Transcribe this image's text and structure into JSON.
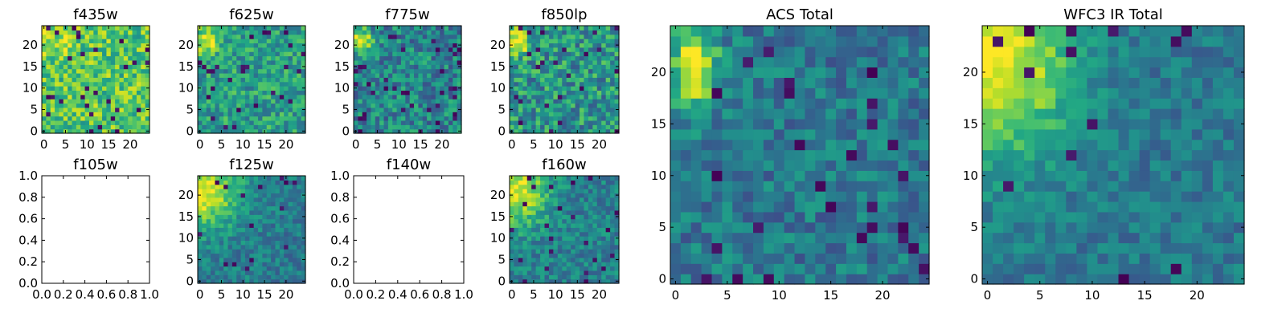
{
  "figure": {
    "background": "#ffffff",
    "colormap": "viridis"
  },
  "chart_data": [
    {
      "id": "f435w",
      "type": "heatmap",
      "title": "f435w",
      "grid_size": 25,
      "has_data": true,
      "xlim": [
        -0.5,
        24.5
      ],
      "ylim": [
        -0.5,
        24.5
      ],
      "xticks": [
        0,
        5,
        10,
        15,
        20
      ],
      "yticks": [
        0,
        5,
        10,
        15,
        20
      ],
      "xtick_labels": [
        "0",
        "5",
        "10",
        "15",
        "20"
      ],
      "ytick_labels": [
        "0",
        "5",
        "10",
        "15",
        "20"
      ],
      "pattern": {
        "base": 0.72,
        "noise": 0.22,
        "blob": {
          "x": 2,
          "y": 21,
          "sx": 3.5,
          "sy": 3.0,
          "amp": 0.15
        },
        "dark_frac": 0.04,
        "seed": 11
      }
    },
    {
      "id": "f625w",
      "type": "heatmap",
      "title": "f625w",
      "grid_size": 25,
      "has_data": true,
      "xlim": [
        -0.5,
        24.5
      ],
      "ylim": [
        -0.5,
        24.5
      ],
      "xticks": [
        0,
        5,
        10,
        15,
        20
      ],
      "yticks": [
        0,
        5,
        10,
        15,
        20
      ],
      "xtick_labels": [
        "0",
        "5",
        "10",
        "15",
        "20"
      ],
      "ytick_labels": [
        "0",
        "5",
        "10",
        "15",
        "20"
      ],
      "pattern": {
        "base": 0.56,
        "noise": 0.2,
        "blob": {
          "x": 1.5,
          "y": 21,
          "sx": 2.2,
          "sy": 2.2,
          "amp": 0.42
        },
        "dark_frac": 0.04,
        "seed": 23
      }
    },
    {
      "id": "f775w",
      "type": "heatmap",
      "title": "f775w",
      "grid_size": 25,
      "has_data": true,
      "xlim": [
        -0.5,
        24.5
      ],
      "ylim": [
        -0.5,
        24.5
      ],
      "xticks": [
        0,
        5,
        10,
        15,
        20
      ],
      "yticks": [
        0,
        5,
        10,
        15,
        20
      ],
      "xtick_labels": [
        "0",
        "5",
        "10",
        "15",
        "20"
      ],
      "ytick_labels": [
        "0",
        "5",
        "10",
        "15",
        "20"
      ],
      "pattern": {
        "base": 0.45,
        "noise": 0.22,
        "blob": {
          "x": 1.5,
          "y": 21,
          "sx": 1.8,
          "sy": 2.0,
          "amp": 0.55
        },
        "dark_frac": 0.06,
        "seed": 37
      }
    },
    {
      "id": "f850lp",
      "type": "heatmap",
      "title": "f850lp",
      "grid_size": 25,
      "has_data": true,
      "xlim": [
        -0.5,
        24.5
      ],
      "ylim": [
        -0.5,
        24.5
      ],
      "xticks": [
        0,
        5,
        10,
        15,
        20
      ],
      "yticks": [
        0,
        5,
        10,
        15,
        20
      ],
      "xtick_labels": [
        "0",
        "5",
        "10",
        "15",
        "20"
      ],
      "ytick_labels": [
        "0",
        "5",
        "10",
        "15",
        "20"
      ],
      "pattern": {
        "base": 0.52,
        "noise": 0.24,
        "blob": {
          "x": 1.5,
          "y": 21,
          "sx": 2.0,
          "sy": 2.2,
          "amp": 0.45
        },
        "dark_frac": 0.06,
        "seed": 41
      }
    },
    {
      "id": "f105w",
      "type": "heatmap",
      "title": "f105w",
      "has_data": false,
      "xlim": [
        0,
        1
      ],
      "ylim": [
        0,
        1
      ],
      "xticks": [
        0,
        0.2,
        0.4,
        0.6,
        0.8,
        1.0
      ],
      "yticks": [
        0,
        0.2,
        0.4,
        0.6,
        0.8,
        1.0
      ],
      "xtick_labels": [
        "0.0",
        "0.2",
        "0.4",
        "0.6",
        "0.8",
        "1.0"
      ],
      "ytick_labels": [
        "0.0",
        "0.2",
        "0.4",
        "0.6",
        "0.8",
        "1.0"
      ]
    },
    {
      "id": "f125w",
      "type": "heatmap",
      "title": "f125w",
      "grid_size": 25,
      "has_data": true,
      "xlim": [
        -0.5,
        24.5
      ],
      "ylim": [
        -0.5,
        24.5
      ],
      "xticks": [
        0,
        5,
        10,
        15,
        20
      ],
      "yticks": [
        0,
        5,
        10,
        15,
        20
      ],
      "xtick_labels": [
        "0",
        "5",
        "10",
        "15",
        "20"
      ],
      "ytick_labels": [
        "0",
        "5",
        "10",
        "15",
        "20"
      ],
      "pattern": {
        "base": 0.42,
        "noise": 0.14,
        "blob": {
          "x": 1,
          "y": 21,
          "sx": 5.5,
          "sy": 6.0,
          "amp": 0.55
        },
        "dark_frac": 0.03,
        "seed": 53
      }
    },
    {
      "id": "f140w",
      "type": "heatmap",
      "title": "f140w",
      "has_data": false,
      "xlim": [
        0,
        1
      ],
      "ylim": [
        0,
        1
      ],
      "xticks": [
        0,
        0.2,
        0.4,
        0.6,
        0.8,
        1.0
      ],
      "yticks": [
        0,
        0.2,
        0.4,
        0.6,
        0.8,
        1.0
      ],
      "xtick_labels": [
        "0.0",
        "0.2",
        "0.4",
        "0.6",
        "0.8",
        "1.0"
      ],
      "ytick_labels": [
        "0.0",
        "0.2",
        "0.4",
        "0.6",
        "0.8",
        "1.0"
      ]
    },
    {
      "id": "f160w",
      "type": "heatmap",
      "title": "f160w",
      "grid_size": 25,
      "has_data": true,
      "xlim": [
        -0.5,
        24.5
      ],
      "ylim": [
        -0.5,
        24.5
      ],
      "xticks": [
        0,
        5,
        10,
        15,
        20
      ],
      "yticks": [
        0,
        5,
        10,
        15,
        20
      ],
      "xtick_labels": [
        "0",
        "5",
        "10",
        "15",
        "20"
      ],
      "ytick_labels": [
        "0",
        "5",
        "10",
        "15",
        "20"
      ],
      "pattern": {
        "base": 0.44,
        "noise": 0.15,
        "blob": {
          "x": 1,
          "y": 21,
          "sx": 5.0,
          "sy": 5.5,
          "amp": 0.52
        },
        "dark_frac": 0.03,
        "seed": 67
      }
    },
    {
      "id": "acs-total",
      "type": "heatmap",
      "title": "ACS Total",
      "grid_size": 25,
      "has_data": true,
      "xlim": [
        -0.5,
        24.5
      ],
      "ylim": [
        -0.5,
        24.5
      ],
      "xticks": [
        0,
        5,
        10,
        15,
        20
      ],
      "yticks": [
        0,
        5,
        10,
        15,
        20
      ],
      "xtick_labels": [
        "0",
        "5",
        "10",
        "15",
        "20"
      ],
      "ytick_labels": [
        "0",
        "5",
        "10",
        "15",
        "20"
      ],
      "pattern": {
        "base": 0.4,
        "noise": 0.16,
        "blob": {
          "x": 1.8,
          "y": 20.5,
          "sx": 1.6,
          "sy": 2.8,
          "amp": 0.6
        },
        "dark_frac": 0.05,
        "seed": 79
      }
    },
    {
      "id": "wfc3-ir-total",
      "type": "heatmap",
      "title": "WFC3 IR Total",
      "grid_size": 25,
      "has_data": true,
      "xlim": [
        -0.5,
        24.5
      ],
      "ylim": [
        -0.5,
        24.5
      ],
      "xticks": [
        0,
        5,
        10,
        15,
        20
      ],
      "yticks": [
        0,
        5,
        10,
        15,
        20
      ],
      "xtick_labels": [
        "0",
        "5",
        "10",
        "15",
        "20"
      ],
      "ytick_labels": [
        "0",
        "5",
        "10",
        "15",
        "20"
      ],
      "pattern": {
        "base": 0.4,
        "noise": 0.12,
        "blob": {
          "x": 0.8,
          "y": 21,
          "sx": 5.0,
          "sy": 6.5,
          "amp": 0.6
        },
        "dark_frac": 0.03,
        "seed": 97
      }
    }
  ]
}
